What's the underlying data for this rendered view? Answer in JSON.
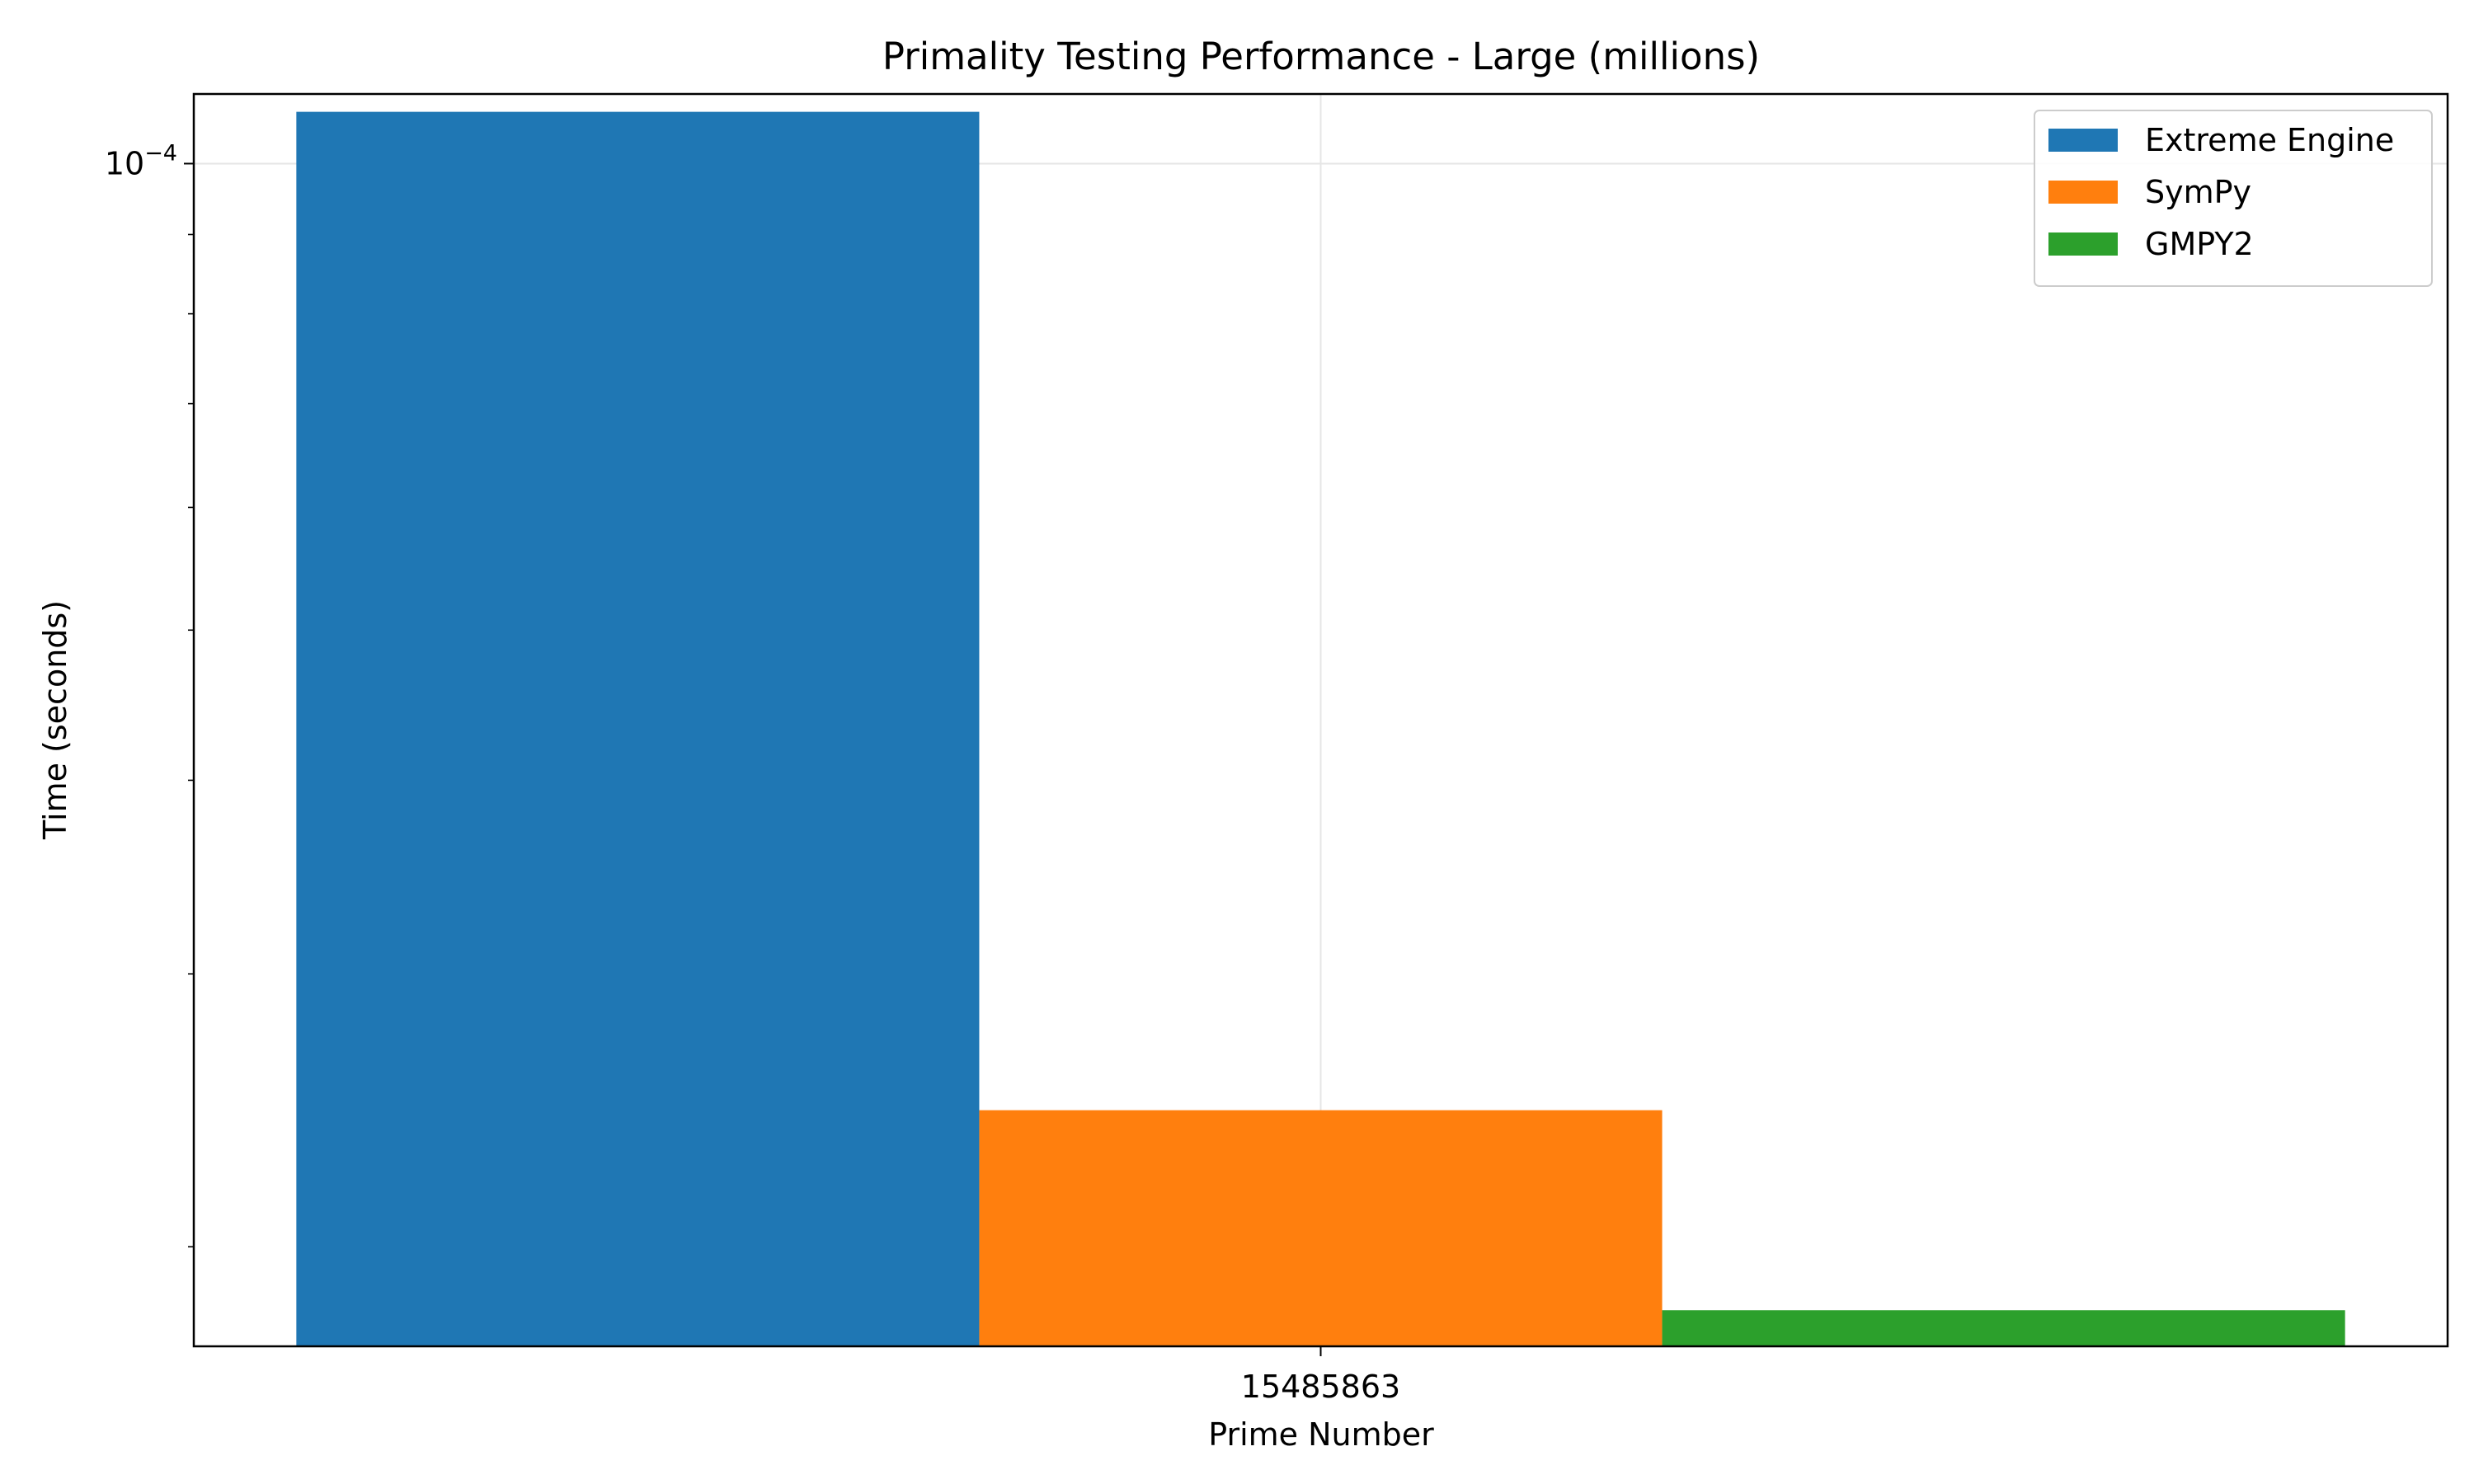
{
  "chart_data": {
    "type": "bar",
    "title": "Primality Testing Performance - Large (millions)",
    "xlabel": "Prime Number",
    "ylabel": "Time (seconds)",
    "categories": [
      "15485863"
    ],
    "y_scale": "log",
    "ylim": [
      1.725e-05,
      0.0001109
    ],
    "y_major_ticks": [
      {
        "value": 0.0001,
        "label_base": "10",
        "label_exp": "−4"
      }
    ],
    "y_minor_ticks": [
      2e-05,
      3e-05,
      4e-05,
      5e-05,
      6e-05,
      7e-05,
      8e-05,
      9e-05
    ],
    "grid": true,
    "legend_position": "top-right",
    "series": [
      {
        "name": "Extreme Engine",
        "color": "#1f77b4",
        "values": [
          0.000108
        ]
      },
      {
        "name": "SymPy",
        "color": "#ff7f0e",
        "values": [
          2.45e-05
        ]
      },
      {
        "name": "GMPY2",
        "color": "#2ca02c",
        "values": [
          1.82e-05
        ]
      }
    ]
  }
}
